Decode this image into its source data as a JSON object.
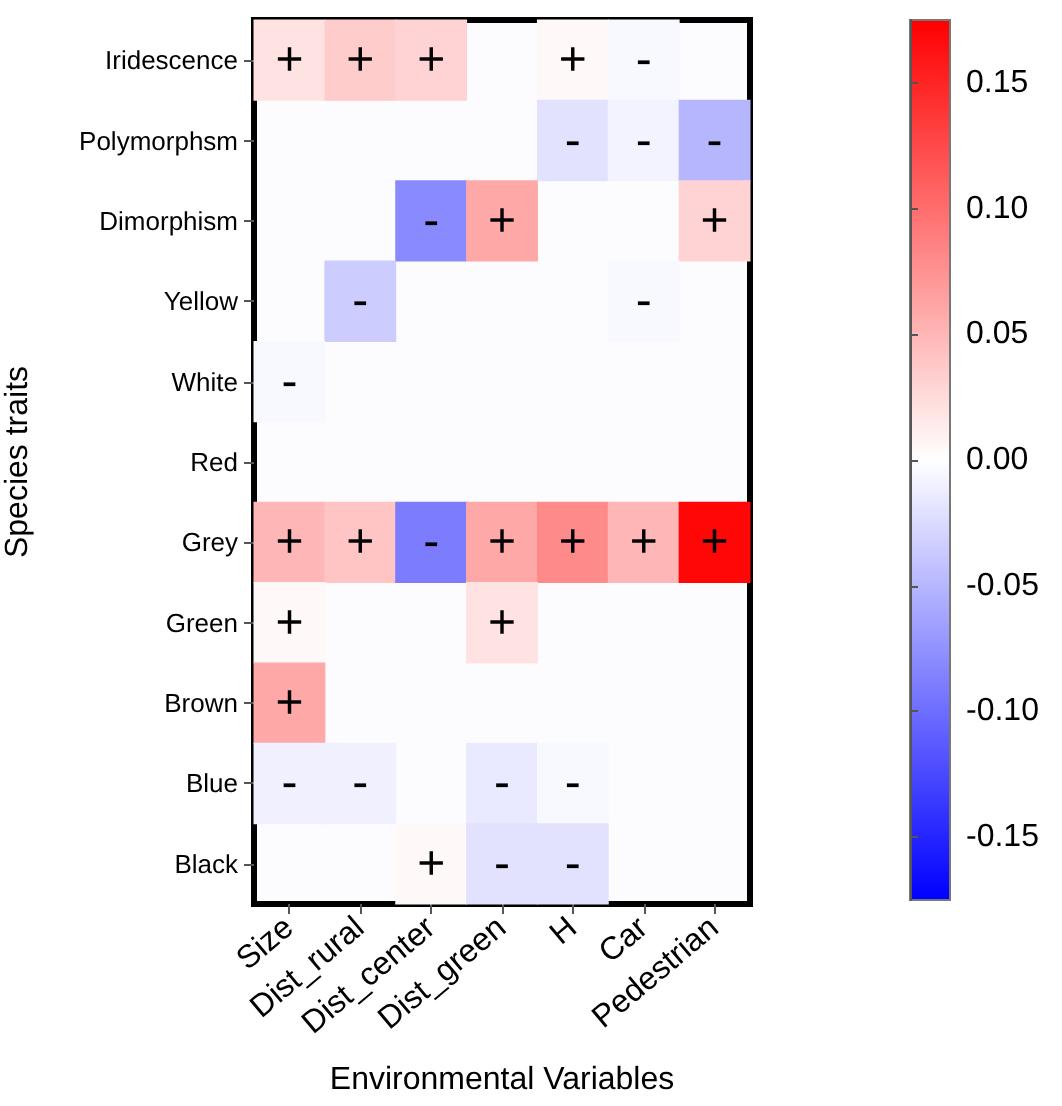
{
  "chart_data": {
    "type": "heatmap",
    "xlabel": "Environmental Variables",
    "ylabel": "Species traits",
    "categories": [
      "Size",
      "Dist_rural",
      "Dist_center",
      "Dist_green",
      "H",
      "Car",
      "Pedestrian"
    ],
    "y_categories": [
      "Iridescence",
      "Polymorphsm",
      "Dimorphism",
      "Yellow",
      "White",
      "Red",
      "Grey",
      "Green",
      "Brown",
      "Blue",
      "Black"
    ],
    "cells": [
      [
        0.02,
        0.035,
        0.03,
        null,
        0.005,
        -0.005,
        null
      ],
      [
        null,
        null,
        null,
        null,
        -0.02,
        -0.008,
        -0.05
      ],
      [
        null,
        null,
        -0.08,
        0.06,
        null,
        null,
        0.03
      ],
      [
        null,
        -0.035,
        null,
        null,
        null,
        -0.005,
        null
      ],
      [
        -0.005,
        null,
        null,
        null,
        null,
        null,
        null
      ],
      [
        null,
        null,
        null,
        null,
        null,
        null,
        null
      ],
      [
        0.05,
        0.04,
        -0.09,
        0.06,
        0.08,
        0.05,
        0.17
      ],
      [
        0.005,
        null,
        null,
        0.02,
        null,
        null,
        null
      ],
      [
        0.06,
        null,
        null,
        null,
        null,
        null,
        null
      ],
      [
        -0.01,
        -0.01,
        null,
        -0.015,
        -0.005,
        null,
        null
      ],
      [
        null,
        null,
        0.005,
        -0.02,
        -0.02,
        null,
        null
      ]
    ],
    "cell_labels": [
      [
        "+",
        "+",
        "+",
        null,
        "+",
        "-",
        null
      ],
      [
        null,
        null,
        null,
        null,
        "-",
        "-",
        "-"
      ],
      [
        null,
        null,
        "-",
        "+",
        null,
        null,
        "+"
      ],
      [
        null,
        "-",
        null,
        null,
        null,
        "-",
        null
      ],
      [
        "-",
        null,
        null,
        null,
        null,
        null,
        null
      ],
      [
        null,
        null,
        null,
        null,
        null,
        null,
        null
      ],
      [
        "+",
        "+",
        "-",
        "+",
        "+",
        "+",
        "+"
      ],
      [
        "+",
        null,
        null,
        "+",
        null,
        null,
        null
      ],
      [
        "+",
        null,
        null,
        null,
        null,
        null,
        null
      ],
      [
        "-",
        "-",
        null,
        "-",
        "-",
        null,
        null
      ],
      [
        null,
        null,
        "+",
        "-",
        "-",
        null,
        null
      ]
    ],
    "clim": [
      -0.175,
      0.175
    ],
    "cticks": [
      {
        "value": -0.15,
        "label": "-0.15"
      },
      {
        "value": -0.1,
        "label": "-0.10"
      },
      {
        "value": -0.05,
        "label": "-0.05"
      },
      {
        "value": 0,
        "label": "0.00"
      },
      {
        "value": 0.05,
        "label": "0.05"
      },
      {
        "value": 0.1,
        "label": "0.10"
      },
      {
        "value": 0.15,
        "label": "0.15"
      }
    ]
  }
}
